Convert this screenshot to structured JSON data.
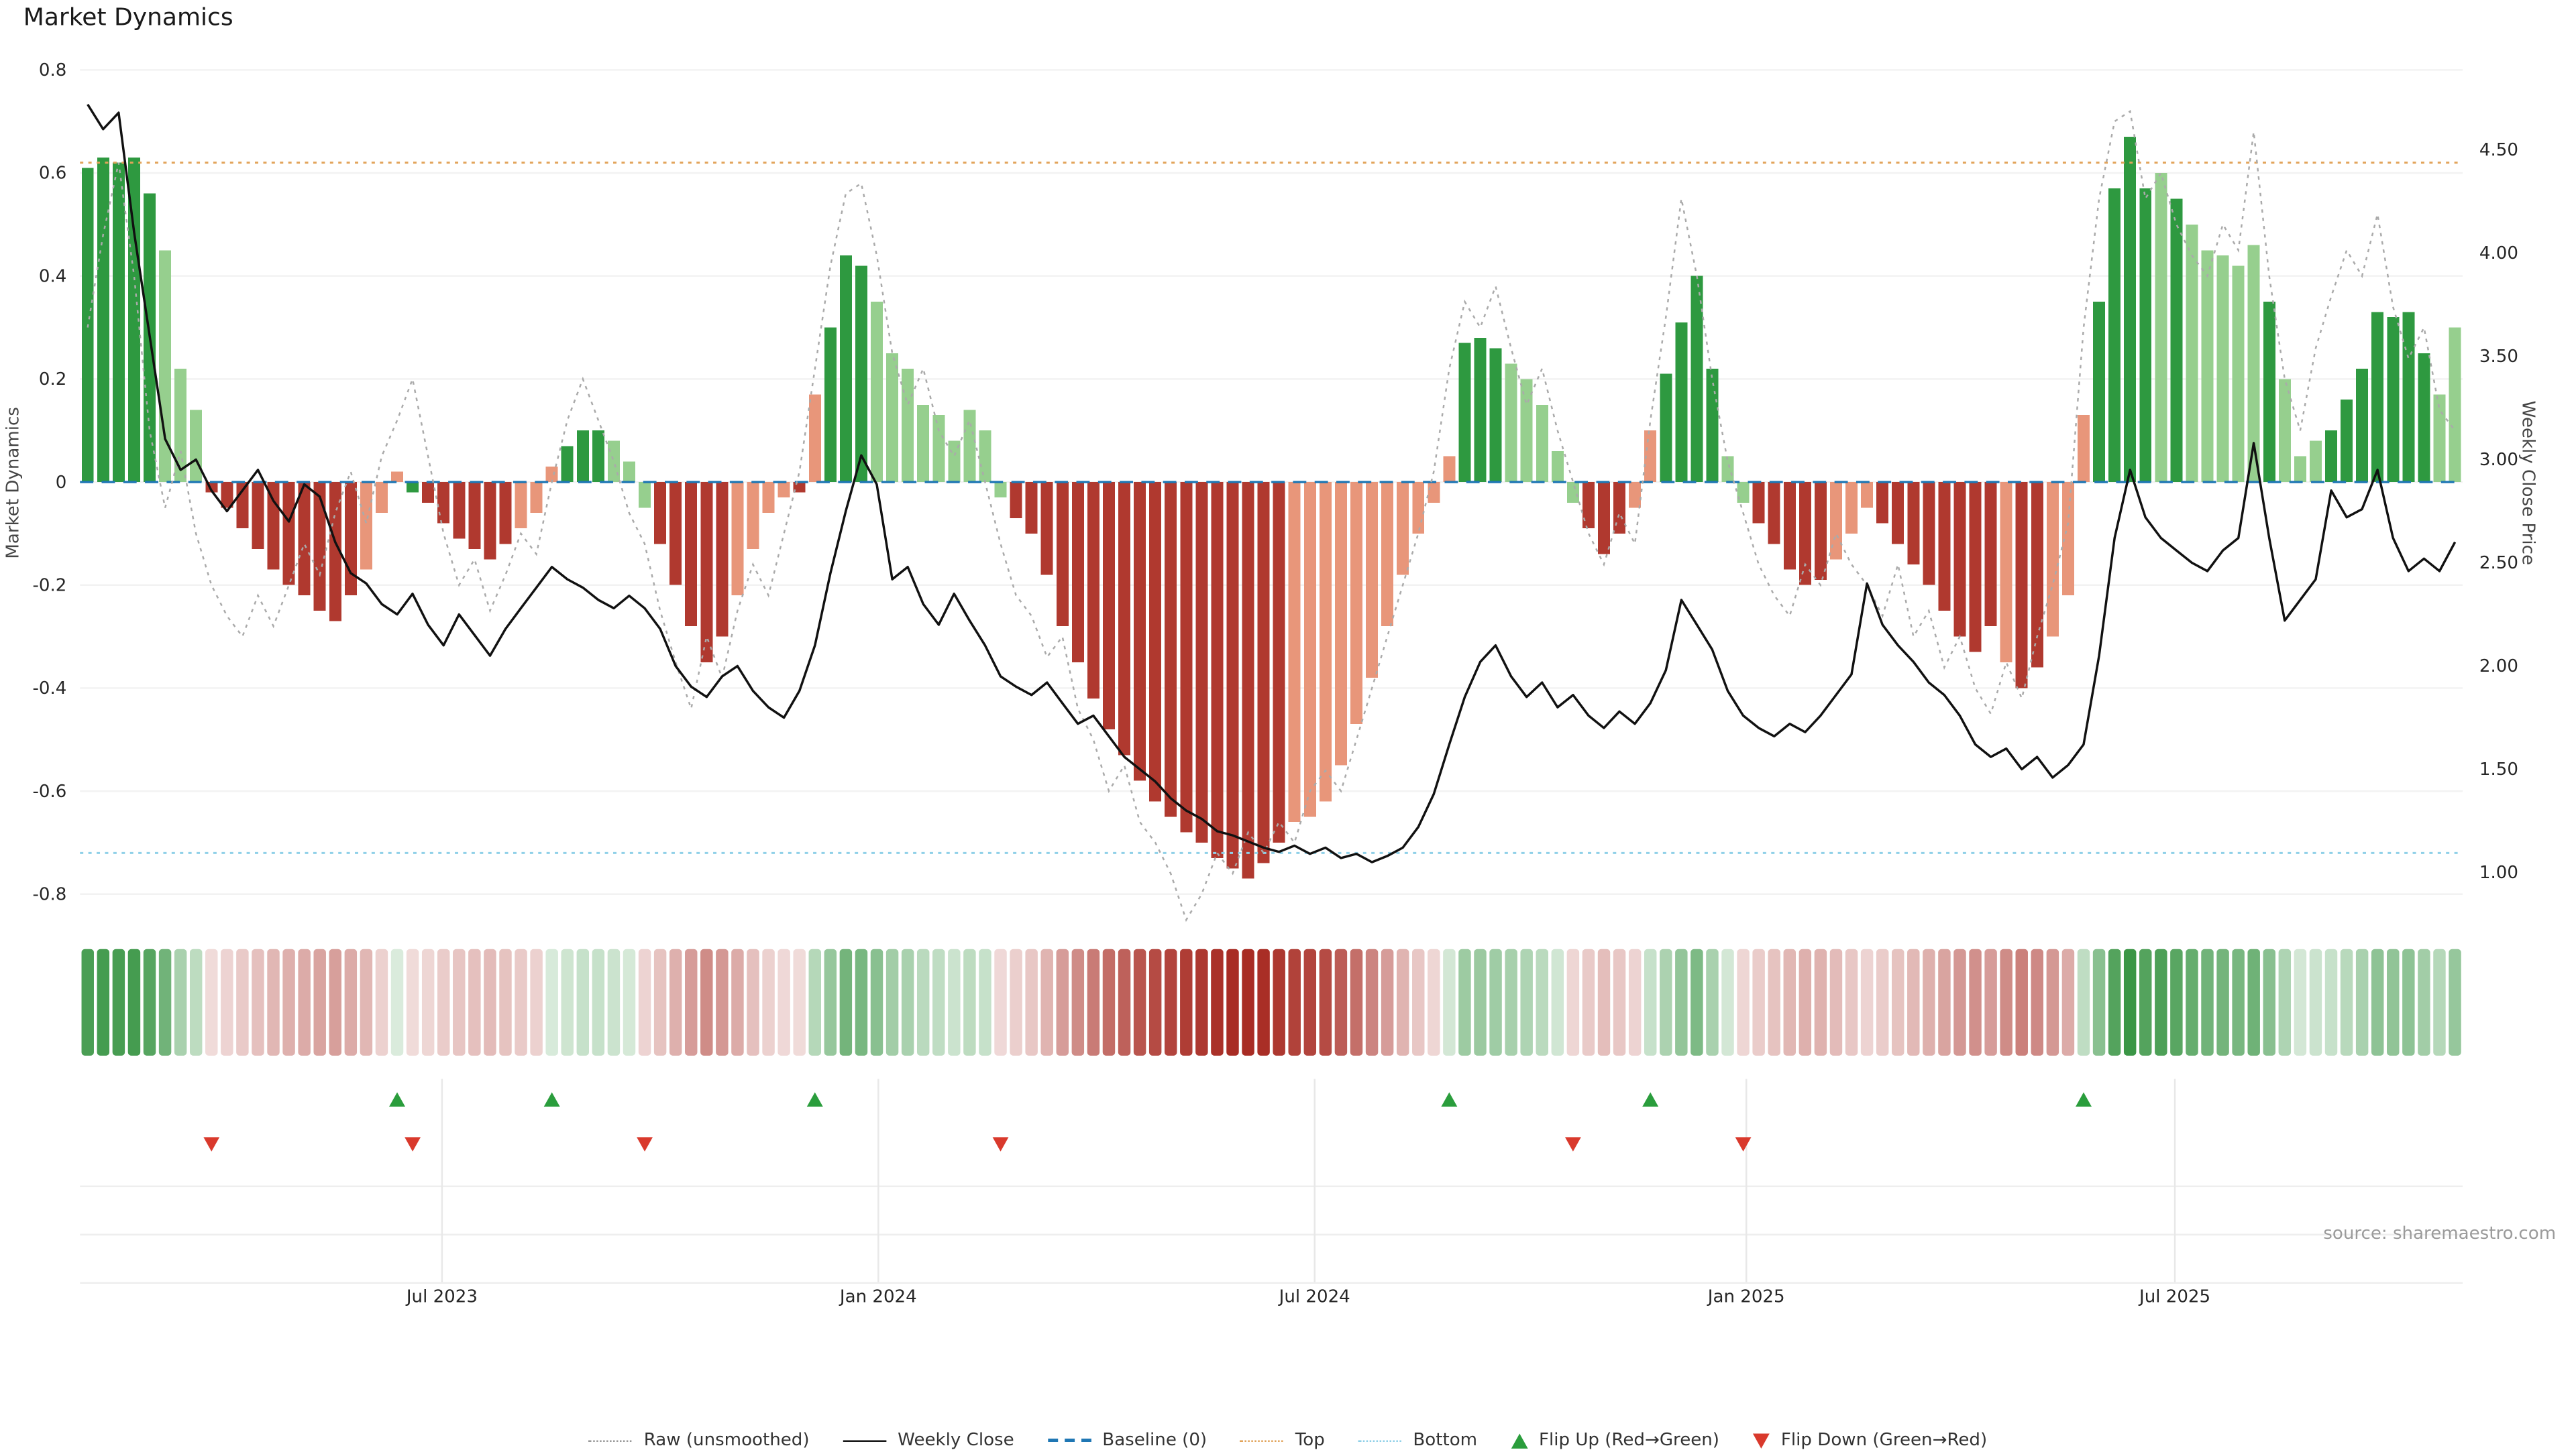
{
  "title": "Market Dynamics",
  "source": "source: sharemaestro.com",
  "chart_data": {
    "type": "bar",
    "title": "Market Dynamics",
    "ylabel_left": "Market Dynamics",
    "ylabel_right": "Weekly Close Price",
    "ylim_left": [
      -0.8,
      0.8
    ],
    "ylim_right": [
      1.0,
      4.5
    ],
    "left_ticks": [
      "0.8",
      "0.6",
      "0.4",
      "0.2",
      "0",
      "-0.2",
      "-0.4",
      "-0.6",
      "-0.8"
    ],
    "right_ticks": [
      "4.50",
      "4.00",
      "3.50",
      "3.00",
      "2.50",
      "2.00",
      "1.50",
      "1.00"
    ],
    "x_ticks": [
      {
        "label": "Jul 2023",
        "week": 23.4
      },
      {
        "label": "Jan 2024",
        "week": 51.6
      },
      {
        "label": "Jul 2024",
        "week": 79.8
      },
      {
        "label": "Jan 2025",
        "week": 107.7
      },
      {
        "label": "Jul 2025",
        "week": 135.4
      }
    ],
    "baseline": 0,
    "top_threshold": 0.62,
    "bottom_threshold": -0.72,
    "flip_up_weeks": [
      20,
      30,
      47,
      88,
      101,
      129
    ],
    "flip_down_weeks": [
      8,
      21,
      36,
      59,
      96,
      107
    ],
    "series": [
      {
        "name": "Market Dynamics (weekly bars)",
        "type": "bar",
        "axis": "left",
        "colors": "GGGGGgggRRRRRRRRRRrrrGRRRRRRrrrGGGgggRRRRRrrrrRrGGGggggggggqRRRRRRRRRRRRRRRRRRrrrrrrrrrrrGGGgggggRRRrrGGGGggRRRRRrrrRRRRRRRRrRRrrrGGGGgGgggggGgggGGGGGGGggg",
        "values": [
          0.61,
          0.63,
          0.62,
          0.63,
          0.56,
          0.45,
          0.22,
          0.14,
          -0.02,
          -0.05,
          -0.09,
          -0.13,
          -0.17,
          -0.2,
          -0.22,
          -0.25,
          -0.27,
          -0.22,
          -0.17,
          -0.06,
          0.02,
          -0.02,
          -0.04,
          -0.08,
          -0.11,
          -0.13,
          -0.15,
          -0.12,
          -0.09,
          -0.06,
          0.03,
          0.07,
          0.1,
          0.1,
          0.08,
          0.04,
          -0.05,
          -0.12,
          -0.2,
          -0.28,
          -0.35,
          -0.3,
          -0.22,
          -0.13,
          -0.06,
          -0.03,
          -0.02,
          0.17,
          0.3,
          0.44,
          0.42,
          0.35,
          0.25,
          0.22,
          0.15,
          0.13,
          0.08,
          0.14,
          0.1,
          -0.03,
          -0.07,
          -0.1,
          -0.18,
          -0.28,
          -0.35,
          -0.42,
          -0.48,
          -0.53,
          -0.58,
          -0.62,
          -0.65,
          -0.68,
          -0.7,
          -0.73,
          -0.75,
          -0.77,
          -0.74,
          -0.7,
          -0.66,
          -0.65,
          -0.62,
          -0.55,
          -0.47,
          -0.38,
          -0.28,
          -0.18,
          -0.1,
          -0.04,
          0.05,
          0.27,
          0.28,
          0.26,
          0.23,
          0.2,
          0.15,
          0.06,
          -0.04,
          -0.09,
          -0.14,
          -0.1,
          -0.05,
          0.1,
          0.21,
          0.31,
          0.4,
          0.22,
          0.05,
          -0.04,
          -0.08,
          -0.12,
          -0.17,
          -0.2,
          -0.19,
          -0.15,
          -0.1,
          -0.05,
          -0.08,
          -0.12,
          -0.16,
          -0.2,
          -0.25,
          -0.3,
          -0.33,
          -0.28,
          -0.35,
          -0.4,
          -0.36,
          -0.3,
          -0.22,
          0.13,
          0.35,
          0.57,
          0.67,
          0.57,
          0.6,
          0.55,
          0.5,
          0.45,
          0.44,
          0.42,
          0.46,
          0.35,
          0.2,
          0.05,
          0.08,
          0.1,
          0.16,
          0.22,
          0.33,
          0.32,
          0.33,
          0.25,
          0.17,
          0.3
        ]
      },
      {
        "name": "Raw (unsmoothed)",
        "type": "line",
        "axis": "left",
        "values": [
          0.3,
          0.48,
          0.62,
          0.4,
          0.1,
          -0.05,
          0.06,
          -0.1,
          -0.2,
          -0.26,
          -0.3,
          -0.22,
          -0.28,
          -0.2,
          -0.12,
          -0.18,
          -0.06,
          0.02,
          -0.08,
          0.05,
          0.12,
          0.2,
          0.05,
          -0.1,
          -0.2,
          -0.15,
          -0.25,
          -0.18,
          -0.1,
          -0.14,
          0.0,
          0.12,
          0.2,
          0.12,
          0.04,
          -0.06,
          -0.12,
          -0.25,
          -0.35,
          -0.44,
          -0.3,
          -0.38,
          -0.25,
          -0.16,
          -0.22,
          -0.1,
          0.02,
          0.22,
          0.42,
          0.56,
          0.58,
          0.44,
          0.25,
          0.15,
          0.22,
          0.1,
          0.05,
          0.12,
          0.0,
          -0.12,
          -0.22,
          -0.26,
          -0.34,
          -0.3,
          -0.44,
          -0.5,
          -0.6,
          -0.55,
          -0.66,
          -0.7,
          -0.76,
          -0.85,
          -0.8,
          -0.72,
          -0.76,
          -0.68,
          -0.72,
          -0.66,
          -0.7,
          -0.6,
          -0.56,
          -0.6,
          -0.5,
          -0.4,
          -0.3,
          -0.2,
          -0.1,
          0.02,
          0.22,
          0.35,
          0.3,
          0.38,
          0.26,
          0.15,
          0.22,
          0.1,
          0.0,
          -0.1,
          -0.16,
          -0.06,
          -0.12,
          0.12,
          0.32,
          0.55,
          0.4,
          0.2,
          0.04,
          -0.06,
          -0.16,
          -0.22,
          -0.26,
          -0.16,
          -0.2,
          -0.1,
          -0.16,
          -0.2,
          -0.26,
          -0.16,
          -0.3,
          -0.25,
          -0.36,
          -0.3,
          -0.4,
          -0.45,
          -0.35,
          -0.42,
          -0.3,
          -0.2,
          -0.08,
          0.3,
          0.55,
          0.7,
          0.72,
          0.55,
          0.6,
          0.5,
          0.44,
          0.4,
          0.5,
          0.45,
          0.68,
          0.4,
          0.2,
          0.1,
          0.26,
          0.36,
          0.45,
          0.4,
          0.52,
          0.34,
          0.24,
          0.3,
          0.14,
          0.1
        ]
      },
      {
        "name": "Weekly Close",
        "type": "line",
        "axis": "right",
        "values": [
          4.72,
          4.6,
          4.68,
          4.1,
          3.6,
          3.1,
          2.95,
          3.0,
          2.85,
          2.75,
          2.85,
          2.95,
          2.8,
          2.7,
          2.88,
          2.82,
          2.6,
          2.45,
          2.4,
          2.3,
          2.25,
          2.35,
          2.2,
          2.1,
          2.25,
          2.15,
          2.05,
          2.18,
          2.28,
          2.38,
          2.48,
          2.42,
          2.38,
          2.32,
          2.28,
          2.34,
          2.28,
          2.18,
          2.0,
          1.9,
          1.85,
          1.95,
          2.0,
          1.88,
          1.8,
          1.75,
          1.88,
          2.1,
          2.45,
          2.75,
          3.02,
          2.88,
          2.42,
          2.48,
          2.3,
          2.2,
          2.35,
          2.22,
          2.1,
          1.95,
          1.9,
          1.86,
          1.92,
          1.82,
          1.72,
          1.76,
          1.66,
          1.56,
          1.5,
          1.44,
          1.36,
          1.3,
          1.26,
          1.2,
          1.18,
          1.15,
          1.12,
          1.1,
          1.13,
          1.09,
          1.12,
          1.07,
          1.09,
          1.05,
          1.08,
          1.12,
          1.22,
          1.38,
          1.62,
          1.85,
          2.02,
          2.1,
          1.95,
          1.85,
          1.92,
          1.8,
          1.86,
          1.76,
          1.7,
          1.78,
          1.72,
          1.82,
          1.98,
          2.32,
          2.2,
          2.08,
          1.88,
          1.76,
          1.7,
          1.66,
          1.72,
          1.68,
          1.76,
          1.86,
          1.96,
          2.4,
          2.2,
          2.1,
          2.02,
          1.92,
          1.86,
          1.76,
          1.62,
          1.56,
          1.6,
          1.5,
          1.56,
          1.46,
          1.52,
          1.62,
          2.05,
          2.62,
          2.95,
          2.72,
          2.62,
          2.56,
          2.5,
          2.46,
          2.56,
          2.62,
          3.08,
          2.62,
          2.22,
          2.32,
          2.42,
          2.85,
          2.72,
          2.76,
          2.95,
          2.62,
          2.46,
          2.52,
          2.46,
          2.6
        ]
      }
    ],
    "palette": {
      "dark_green": "#2e9940",
      "light_green": "#96cf8e",
      "dark_red": "#b0392f",
      "light_red": "#e8967a",
      "baseline": "#1f77b4",
      "top": "#e2a359",
      "bottom": "#8fd0e8",
      "raw": "#aaaaaa",
      "close": "#111111",
      "flip_up": "#2a9d3c",
      "flip_down": "#d9392c",
      "grid": "#ededed"
    },
    "legend": [
      {
        "label": "Raw (unsmoothed)"
      },
      {
        "label": "Weekly Close"
      },
      {
        "label": "Baseline (0)"
      },
      {
        "label": "Top"
      },
      {
        "label": "Bottom"
      },
      {
        "label": "Flip Up (Red→Green)"
      },
      {
        "label": "Flip Down (Green→Red)"
      }
    ]
  }
}
